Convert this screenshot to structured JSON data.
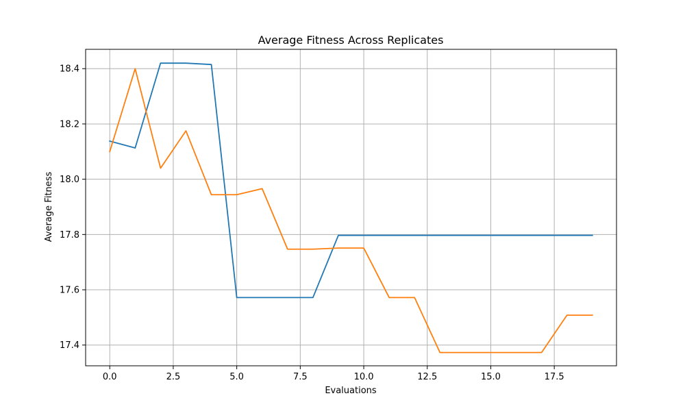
{
  "chart_data": {
    "type": "line",
    "title": "Average Fitness Across Replicates",
    "xlabel": "Evaluations",
    "ylabel": "Average Fitness",
    "xlim": [
      -0.95,
      19.95
    ],
    "ylim": [
      17.325,
      18.47
    ],
    "grid": true,
    "x_ticks": [
      0.0,
      2.5,
      5.0,
      7.5,
      10.0,
      12.5,
      15.0,
      17.5
    ],
    "x_tick_labels": [
      "0.0",
      "2.5",
      "5.0",
      "7.5",
      "10.0",
      "12.5",
      "15.0",
      "17.5"
    ],
    "y_ticks": [
      17.4,
      17.6,
      17.8,
      18.0,
      18.2,
      18.4
    ],
    "y_tick_labels": [
      "17.4",
      "17.6",
      "17.8",
      "18.0",
      "18.2",
      "18.4"
    ],
    "x": [
      0,
      1,
      2,
      3,
      4,
      5,
      6,
      7,
      8,
      9,
      10,
      11,
      12,
      13,
      14,
      15,
      16,
      17,
      18,
      19
    ],
    "series": [
      {
        "name": "series-1",
        "color": "#1f77b4",
        "values": [
          18.138,
          18.113,
          18.42,
          18.42,
          18.415,
          17.572,
          17.572,
          17.572,
          17.572,
          17.797,
          17.797,
          17.797,
          17.797,
          17.797,
          17.797,
          17.797,
          17.797,
          17.797,
          17.797,
          17.797
        ]
      },
      {
        "name": "series-2",
        "color": "#ff7f0e",
        "values": [
          18.1,
          18.4,
          18.04,
          18.175,
          17.944,
          17.944,
          17.966,
          17.747,
          17.747,
          17.751,
          17.751,
          17.572,
          17.572,
          17.373,
          17.373,
          17.373,
          17.373,
          17.373,
          17.508,
          17.508
        ]
      }
    ]
  }
}
